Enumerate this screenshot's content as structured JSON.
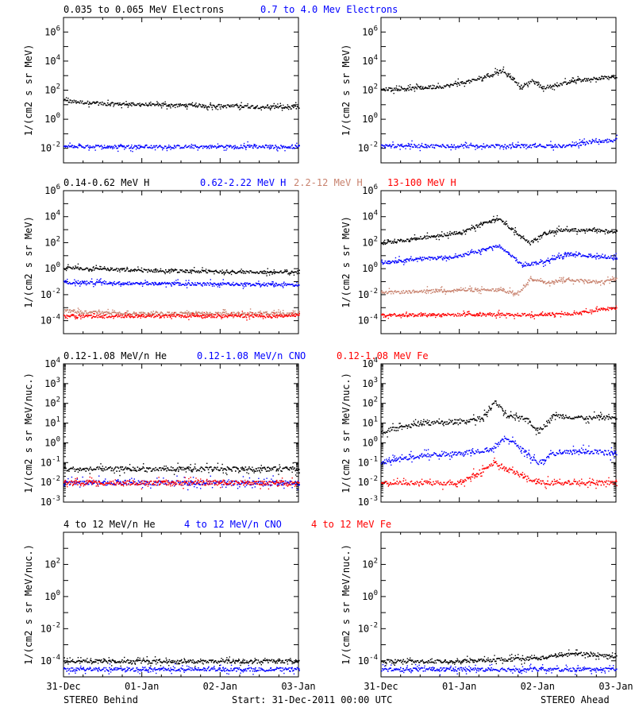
{
  "colors": {
    "black": "#000000",
    "blue": "#0000ff",
    "brown": "#c8826e",
    "red": "#ff0000"
  },
  "footer": {
    "left": "STEREO Behind",
    "center": "Start: 31-Dec-2011 00:00 UTC",
    "right": "STEREO Ahead"
  },
  "x_ticks": [
    "31-Dec",
    "01-Jan",
    "02-Jan",
    "03-Jan"
  ],
  "rows": [
    {
      "titles": [
        {
          "text": "0.035 to 0.065 MeV Electrons",
          "color": "#000000"
        },
        {
          "text": "0.7 to 4.0 Mev Electrons",
          "color": "#0000ff"
        }
      ]
    },
    {
      "titles": [
        {
          "text": "0.14-0.62 MeV H",
          "color": "#000000"
        },
        {
          "text": "0.62-2.22 MeV H",
          "color": "#0000ff"
        },
        {
          "text": "2.2-12 MeV H",
          "color": "#c8826e"
        },
        {
          "text": "13-100 MeV H",
          "color": "#ff0000"
        }
      ]
    },
    {
      "titles": [
        {
          "text": "0.12-1.08 MeV/n He",
          "color": "#000000"
        },
        {
          "text": "0.12-1.08 MeV/n CNO",
          "color": "#0000ff"
        },
        {
          "text": "0.12-1.08 MeV Fe",
          "color": "#ff0000"
        }
      ]
    },
    {
      "titles": [
        {
          "text": "4 to 12 MeV/n He",
          "color": "#000000"
        },
        {
          "text": "4 to 12 MeV/n CNO",
          "color": "#0000ff"
        },
        {
          "text": "4 to 12 MeV Fe",
          "color": "#ff0000"
        }
      ]
    }
  ],
  "chart_data": [
    {
      "type": "scatter",
      "panel": "electrons-behind",
      "xlabel": "",
      "ylabel": "1/(cm2 s sr MeV)",
      "y_log": true,
      "ylim_exp": [
        -3,
        7
      ],
      "y_tick_exps": [
        -2,
        0,
        2,
        4,
        6
      ],
      "x_range_days": [
        0,
        3
      ],
      "series": [
        {
          "name": "0.035 to 0.065 MeV Electrons",
          "color": "#000000",
          "x": [
            0,
            0.5,
            1.0,
            1.5,
            2.0,
            2.5,
            3.0
          ],
          "y_exp": [
            1.3,
            1.1,
            1.05,
            1.0,
            0.95,
            0.9,
            0.85
          ]
        },
        {
          "name": "0.7 to 4.0 Mev Electrons",
          "color": "#0000ff",
          "x": [
            0,
            1.0,
            2.0,
            3.0
          ],
          "y_exp": [
            -1.85,
            -1.85,
            -1.85,
            -1.85
          ]
        }
      ]
    },
    {
      "type": "scatter",
      "panel": "electrons-ahead",
      "xlabel": "",
      "ylabel": "1/(cm2 s sr MeV)",
      "y_log": true,
      "ylim_exp": [
        -3,
        7
      ],
      "y_tick_exps": [
        -2,
        0,
        2,
        4,
        6
      ],
      "x_range_days": [
        0,
        3
      ],
      "series": [
        {
          "name": "0.035 to 0.065 MeV Electrons",
          "color": "#000000",
          "x": [
            0,
            0.4,
            0.8,
            1.1,
            1.35,
            1.55,
            1.8,
            1.92,
            2.05,
            2.25,
            2.5,
            2.8,
            3.0
          ],
          "y_exp": [
            2.1,
            2.15,
            2.3,
            2.6,
            3.0,
            3.4,
            2.2,
            2.7,
            2.2,
            2.4,
            2.7,
            2.9,
            2.9
          ]
        },
        {
          "name": "0.7 to 4.0 Mev Electrons",
          "color": "#0000ff",
          "x": [
            0,
            1.0,
            2.0,
            2.4,
            2.7,
            3.0
          ],
          "y_exp": [
            -1.8,
            -1.8,
            -1.8,
            -1.8,
            -1.5,
            -1.4
          ]
        }
      ]
    },
    {
      "type": "scatter",
      "panel": "protons-behind",
      "xlabel": "",
      "ylabel": "1/(cm2 s sr MeV)",
      "y_log": true,
      "ylim_exp": [
        -5,
        6
      ],
      "y_tick_exps": [
        -4,
        -2,
        0,
        2,
        4,
        6
      ],
      "x_range_days": [
        0,
        3
      ],
      "series": [
        {
          "name": "0.14-0.62 MeV H",
          "color": "#000000",
          "x": [
            0,
            1.0,
            2.0,
            3.0
          ],
          "y_exp": [
            0.1,
            -0.1,
            -0.2,
            -0.25
          ]
        },
        {
          "name": "0.62-2.22 MeV H",
          "color": "#0000ff",
          "x": [
            0,
            1.0,
            2.0,
            3.0
          ],
          "y_exp": [
            -1.0,
            -1.1,
            -1.15,
            -1.2
          ]
        },
        {
          "name": "2.2-12 MeV H",
          "color": "#c8826e",
          "x": [
            0,
            0.2,
            1.0,
            2.0,
            3.0
          ],
          "y_exp": [
            -3.2,
            -3.3,
            -3.4,
            -3.4,
            -3.4
          ]
        },
        {
          "name": "13-100 MeV H",
          "color": "#ff0000",
          "x": [
            0,
            1.0,
            2.0,
            3.0
          ],
          "y_exp": [
            -3.6,
            -3.6,
            -3.6,
            -3.6
          ]
        }
      ]
    },
    {
      "type": "scatter",
      "panel": "protons-ahead",
      "xlabel": "",
      "ylabel": "1/(cm2 s sr MeV)",
      "y_log": true,
      "ylim_exp": [
        -5,
        6
      ],
      "y_tick_exps": [
        -4,
        -2,
        0,
        2,
        4,
        6
      ],
      "x_range_days": [
        0,
        3
      ],
      "series": [
        {
          "name": "0.14-0.62 MeV H",
          "color": "#000000",
          "x": [
            0,
            0.5,
            1.0,
            1.3,
            1.5,
            1.8,
            1.9,
            2.05,
            2.3,
            2.7,
            3.0
          ],
          "y_exp": [
            2.0,
            2.4,
            2.8,
            3.5,
            3.9,
            2.4,
            2.0,
            2.7,
            3.0,
            3.0,
            2.9
          ]
        },
        {
          "name": "0.62-2.22 MeV H",
          "color": "#0000ff",
          "x": [
            0,
            0.5,
            1.0,
            1.5,
            1.8,
            2.1,
            2.4,
            2.7,
            3.0
          ],
          "y_exp": [
            0.5,
            0.8,
            1.0,
            1.8,
            0.3,
            0.6,
            1.2,
            1.0,
            0.9
          ]
        },
        {
          "name": "2.2-12 MeV H",
          "color": "#c8826e",
          "x": [
            0,
            0.5,
            1.0,
            1.5,
            1.75,
            1.9,
            2.1,
            2.4,
            2.8,
            3.0
          ],
          "y_exp": [
            -1.8,
            -1.7,
            -1.6,
            -1.6,
            -1.9,
            -0.7,
            -1.0,
            -0.8,
            -1.0,
            -0.8
          ]
        },
        {
          "name": "13-100 MeV H",
          "color": "#ff0000",
          "x": [
            0,
            1.0,
            2.0,
            2.5,
            2.8,
            3.0
          ],
          "y_exp": [
            -3.5,
            -3.5,
            -3.5,
            -3.4,
            -3.1,
            -3.0
          ]
        }
      ]
    },
    {
      "type": "scatter",
      "panel": "ions-low-behind",
      "xlabel": "",
      "ylabel": "1/(cm2 s sr MeV/nuc.)",
      "y_log": true,
      "ylim_exp": [
        -3,
        4
      ],
      "y_tick_exps": [
        -3,
        -2,
        -1,
        0,
        1,
        2,
        3,
        4
      ],
      "x_range_days": [
        0,
        3
      ],
      "series": [
        {
          "name": "0.12-1.08 MeV/n He",
          "color": "#000000",
          "x": [
            0,
            1.0,
            2.0,
            3.0
          ],
          "y_exp": [
            -1.3,
            -1.3,
            -1.3,
            -1.3
          ]
        },
        {
          "name": "0.12-1.08 MeV/n CNO",
          "color": "#0000ff",
          "x": [
            0,
            1.0,
            2.0,
            3.0
          ],
          "y_exp": [
            -2.0,
            -2.0,
            -2.0,
            -2.0
          ]
        },
        {
          "name": "0.12-1.08 MeV Fe",
          "color": "#ff0000",
          "x": [
            0,
            1.0,
            2.0,
            3.0
          ],
          "y_exp": [
            -2.0,
            -2.0,
            -2.0,
            -2.0
          ]
        }
      ]
    },
    {
      "type": "scatter",
      "panel": "ions-low-ahead",
      "xlabel": "",
      "ylabel": "1/(cm2 s sr MeV/nuc.)",
      "y_log": true,
      "ylim_exp": [
        -3,
        4
      ],
      "y_tick_exps": [
        -3,
        -2,
        -1,
        0,
        1,
        2,
        3,
        4
      ],
      "x_range_days": [
        0,
        3
      ],
      "series": [
        {
          "name": "0.12-1.08 MeV/n He",
          "color": "#000000",
          "x": [
            0,
            0.5,
            1.0,
            1.3,
            1.45,
            1.6,
            1.85,
            2.0,
            2.2,
            2.6,
            3.0
          ],
          "y_exp": [
            0.6,
            1.0,
            1.1,
            1.3,
            2.1,
            1.4,
            1.3,
            0.6,
            1.4,
            1.3,
            1.3
          ]
        },
        {
          "name": "0.12-1.08 MeV/n CNO",
          "color": "#0000ff",
          "x": [
            0,
            0.5,
            1.0,
            1.4,
            1.6,
            1.85,
            2.0,
            2.2,
            2.6,
            3.0
          ],
          "y_exp": [
            -1.0,
            -0.6,
            -0.5,
            -0.3,
            0.3,
            -0.5,
            -1.0,
            -0.5,
            -0.4,
            -0.5
          ]
        },
        {
          "name": "0.12-1.08 MeV Fe",
          "color": "#ff0000",
          "x": [
            0,
            1.0,
            1.45,
            1.6,
            2.0,
            3.0
          ],
          "y_exp": [
            -2.0,
            -2.0,
            -1.0,
            -1.3,
            -2.0,
            -2.0
          ]
        }
      ]
    },
    {
      "type": "scatter",
      "panel": "ions-high-behind",
      "xlabel": "",
      "ylabel": "1/(cm2 s sr MeV/nuc.)",
      "y_log": true,
      "ylim_exp": [
        -5,
        4
      ],
      "y_tick_exps": [
        -4,
        -2,
        0,
        2
      ],
      "x_range_days": [
        0,
        3
      ],
      "series": [
        {
          "name": "4 to 12 MeV/n He",
          "color": "#000000",
          "x": [
            0,
            1.0,
            2.0,
            3.0
          ],
          "y_exp": [
            -4,
            -4,
            -4,
            -4
          ]
        },
        {
          "name": "4 to 12 MeV/n CNO",
          "color": "#0000ff",
          "x": [
            0,
            1.0,
            2.0,
            3.0
          ],
          "y_exp": [
            -4.5,
            -4.5,
            -4.5,
            -4.5
          ]
        }
      ]
    },
    {
      "type": "scatter",
      "panel": "ions-high-ahead",
      "xlabel": "",
      "ylabel": "1/(cm2 s sr MeV/nuc.)",
      "y_log": true,
      "ylim_exp": [
        -5,
        4
      ],
      "y_tick_exps": [
        -4,
        -2,
        0,
        2
      ],
      "x_range_days": [
        0,
        3
      ],
      "series": [
        {
          "name": "4 to 12 MeV/n He",
          "color": "#000000",
          "x": [
            0,
            1.0,
            2.0,
            2.5,
            3.0
          ],
          "y_exp": [
            -4.0,
            -4.0,
            -3.8,
            -3.5,
            -3.7
          ]
        },
        {
          "name": "4 to 12 MeV/n CNO",
          "color": "#0000ff",
          "x": [
            0,
            1.0,
            2.0,
            3.0
          ],
          "y_exp": [
            -4.5,
            -4.5,
            -4.5,
            -4.5
          ]
        }
      ]
    }
  ]
}
